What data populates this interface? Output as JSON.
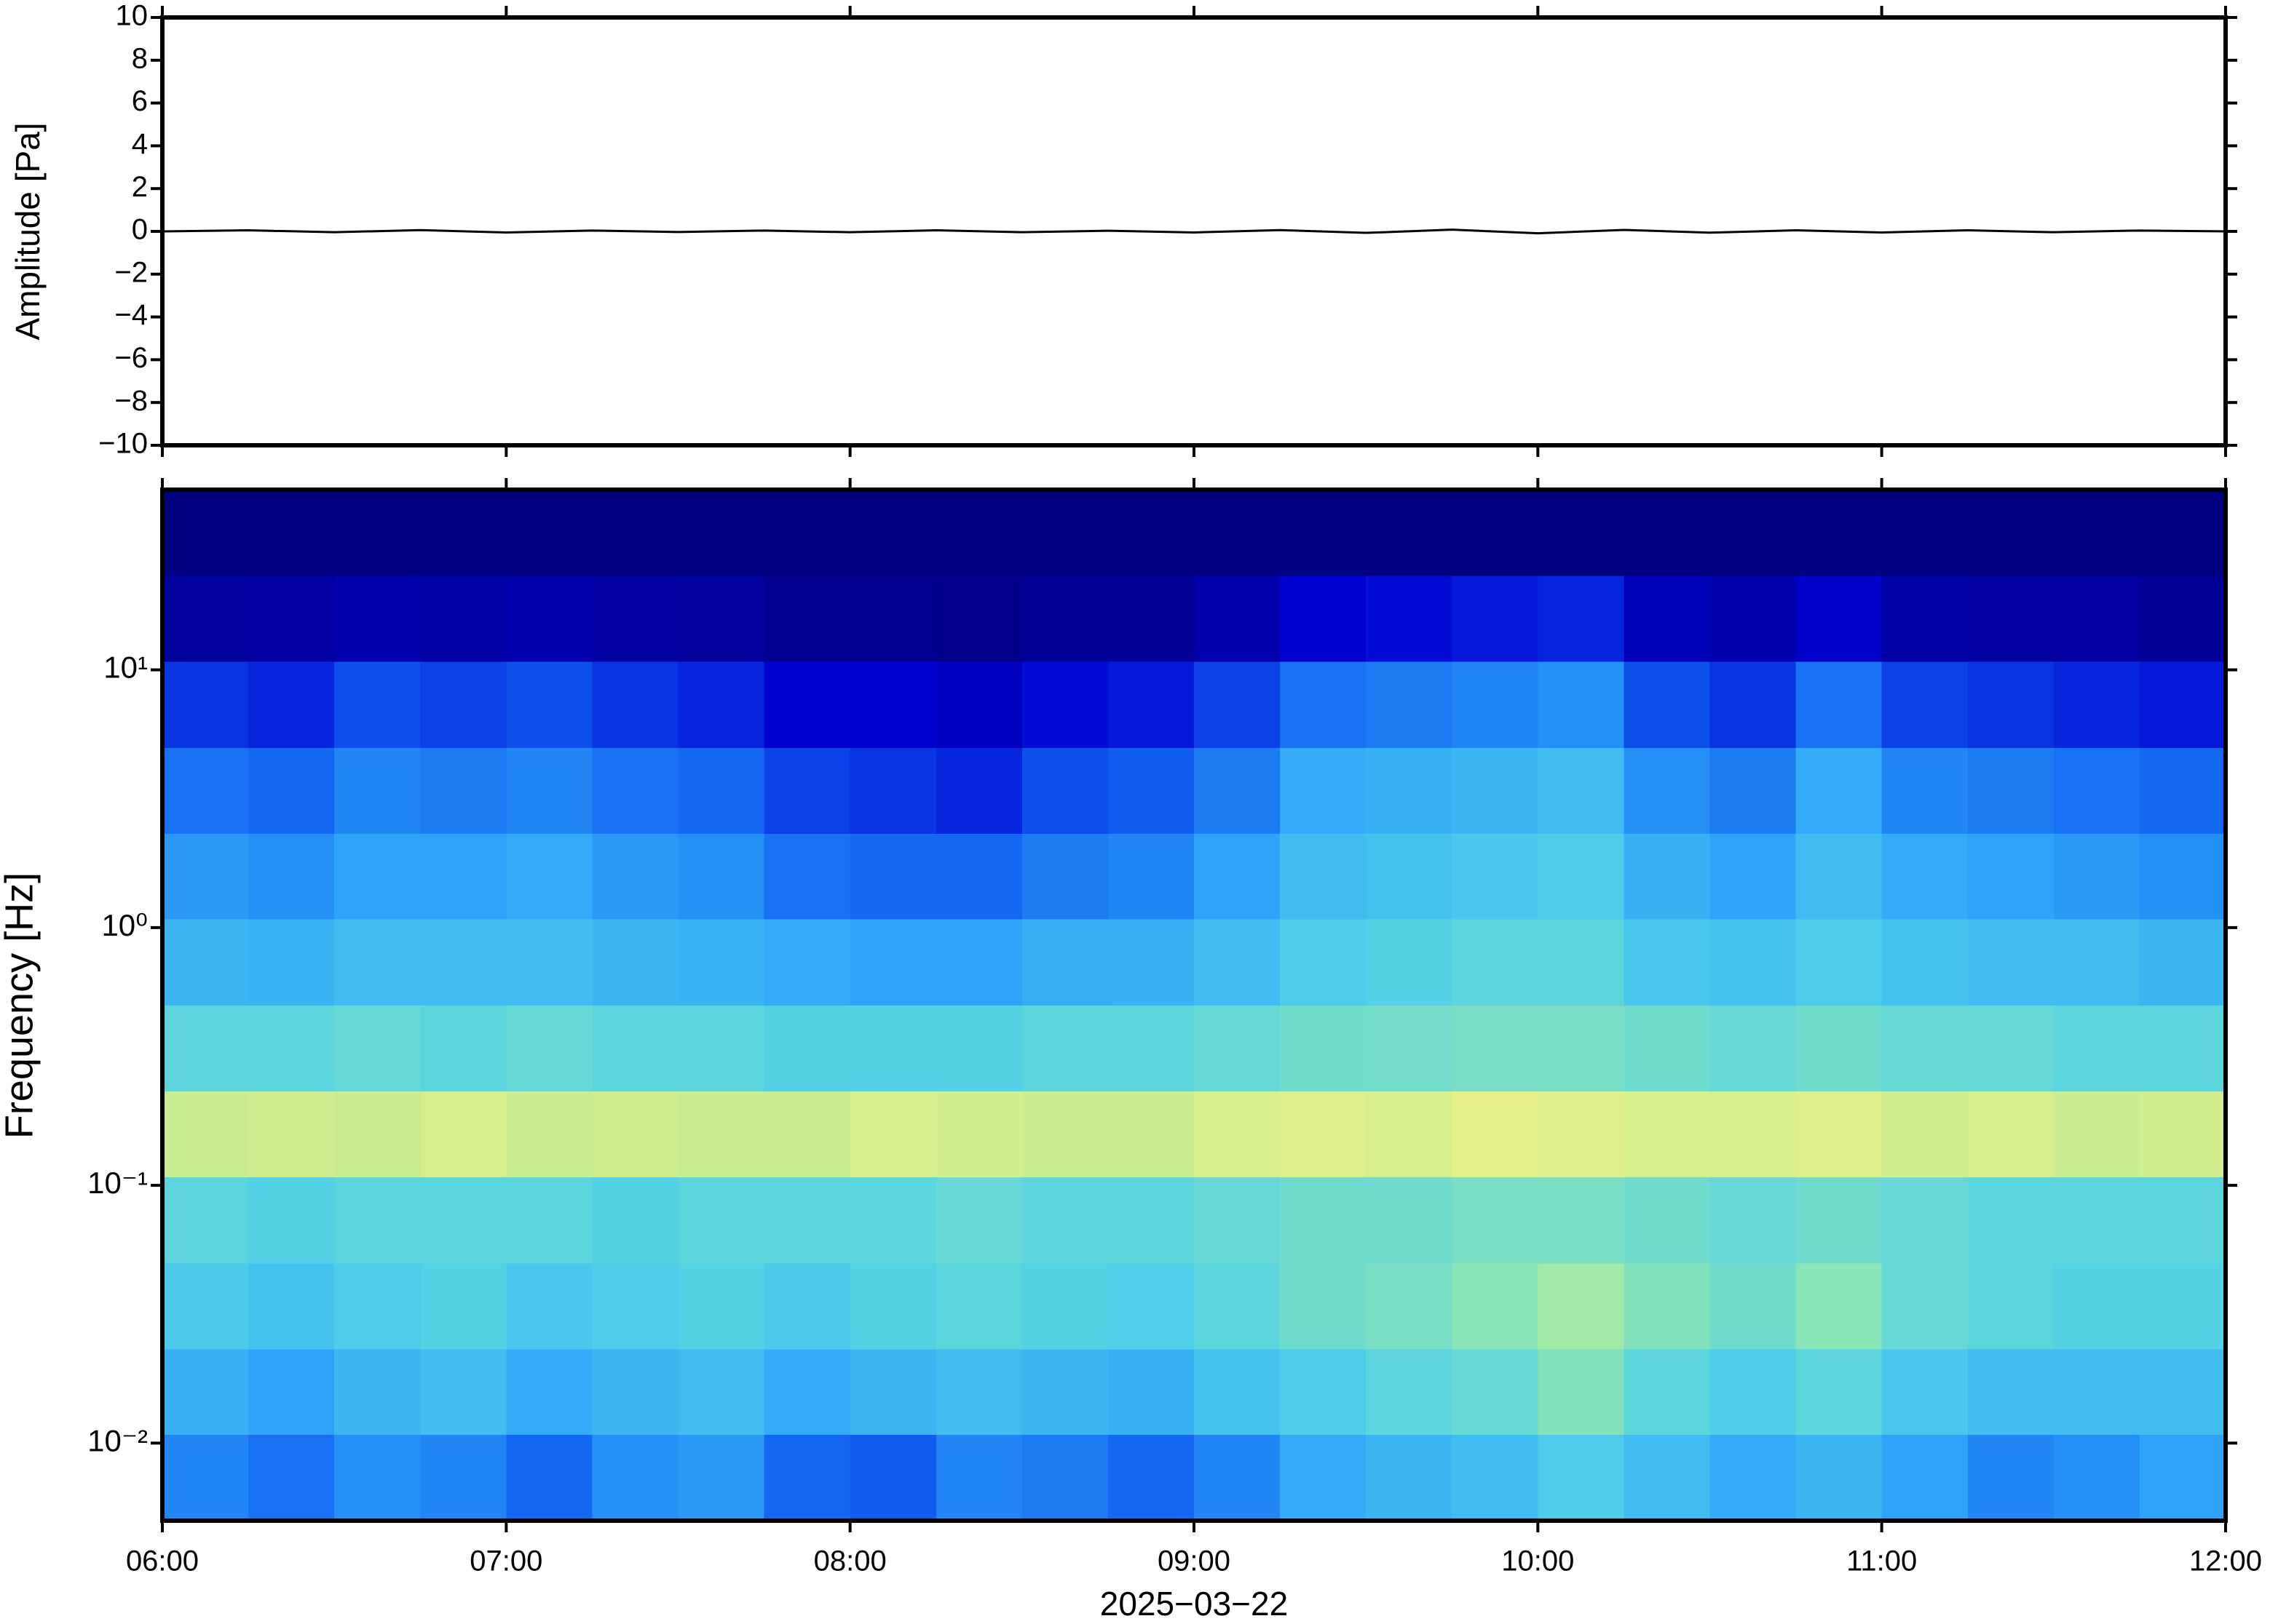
{
  "chart_data": [
    {
      "type": "line",
      "ylabel": "Amplitude [Pa]",
      "color": "#000000",
      "x": [
        6,
        6.25,
        6.5,
        6.75,
        7,
        7.25,
        7.5,
        7.75,
        8,
        8.25,
        8.5,
        8.75,
        9,
        9.25,
        9.5,
        9.75,
        10,
        10.25,
        10.5,
        10.75,
        11,
        11.25,
        11.5,
        11.75,
        12
      ],
      "values": [
        0,
        0.05,
        -0.04,
        0.06,
        -0.05,
        0.04,
        -0.03,
        0.04,
        -0.04,
        0.05,
        -0.04,
        0.03,
        -0.05,
        0.06,
        -0.07,
        0.08,
        -0.09,
        0.07,
        -0.06,
        0.05,
        -0.05,
        0.05,
        -0.04,
        0.04,
        0
      ],
      "xlim": [
        6,
        12
      ],
      "ylim": [
        -10,
        10
      ],
      "yticks": [
        {
          "value": -10,
          "label": "−10"
        },
        {
          "value": -8,
          "label": "−8"
        },
        {
          "value": -6,
          "label": "−6"
        },
        {
          "value": -4,
          "label": "−4"
        },
        {
          "value": -2,
          "label": "−2"
        },
        0,
        2,
        4,
        6,
        8,
        10
      ]
    },
    {
      "type": "heatmap",
      "ylabel": "Frequency [Hz]",
      "xlabel": "2025−03−22",
      "log_y": true,
      "xbins": [
        6,
        6.25,
        6.5,
        6.75,
        7,
        7.25,
        7.5,
        7.75,
        8,
        8.25,
        8.5,
        8.75,
        9,
        9.25,
        9.5,
        9.75,
        10,
        10.25,
        10.5,
        10.75,
        11,
        11.25,
        11.5,
        11.75,
        12
      ],
      "ybins": [
        0.005,
        0.0108,
        0.0232,
        0.05,
        0.108,
        0.232,
        0.5,
        1.08,
        2.32,
        5,
        10.8,
        23.2,
        50
      ],
      "values": [
        [
          0.36,
          0.32,
          0.38,
          0.36,
          0.3,
          0.38,
          0.4,
          0.3,
          0.28,
          0.36,
          0.34,
          0.3,
          0.36,
          0.44,
          0.48,
          0.5,
          0.56,
          0.5,
          0.44,
          0.48,
          0.42,
          0.36,
          0.38,
          0.42
        ],
        [
          0.46,
          0.42,
          0.48,
          0.5,
          0.44,
          0.48,
          0.5,
          0.44,
          0.48,
          0.5,
          0.48,
          0.46,
          0.52,
          0.56,
          0.6,
          0.62,
          0.68,
          0.6,
          0.56,
          0.6,
          0.54,
          0.5,
          0.5,
          0.5
        ],
        [
          0.55,
          0.52,
          0.56,
          0.58,
          0.54,
          0.56,
          0.58,
          0.55,
          0.58,
          0.6,
          0.58,
          0.57,
          0.6,
          0.64,
          0.66,
          0.7,
          0.74,
          0.68,
          0.64,
          0.7,
          0.62,
          0.6,
          0.58,
          0.58
        ],
        [
          0.6,
          0.58,
          0.6,
          0.6,
          0.6,
          0.58,
          0.6,
          0.6,
          0.6,
          0.62,
          0.6,
          0.6,
          0.62,
          0.64,
          0.64,
          0.66,
          0.66,
          0.64,
          0.62,
          0.64,
          0.62,
          0.6,
          0.6,
          0.6
        ],
        [
          0.8,
          0.81,
          0.8,
          0.82,
          0.8,
          0.81,
          0.8,
          0.8,
          0.82,
          0.81,
          0.8,
          0.8,
          0.82,
          0.83,
          0.82,
          0.84,
          0.83,
          0.82,
          0.82,
          0.83,
          0.81,
          0.82,
          0.8,
          0.81
        ],
        [
          0.6,
          0.6,
          0.62,
          0.6,
          0.62,
          0.6,
          0.6,
          0.58,
          0.58,
          0.58,
          0.6,
          0.6,
          0.62,
          0.64,
          0.65,
          0.66,
          0.66,
          0.64,
          0.62,
          0.64,
          0.62,
          0.62,
          0.6,
          0.6
        ],
        [
          0.48,
          0.47,
          0.5,
          0.5,
          0.5,
          0.48,
          0.47,
          0.44,
          0.42,
          0.42,
          0.45,
          0.46,
          0.5,
          0.56,
          0.58,
          0.6,
          0.6,
          0.54,
          0.52,
          0.56,
          0.52,
          0.5,
          0.5,
          0.48
        ],
        [
          0.4,
          0.38,
          0.42,
          0.42,
          0.44,
          0.4,
          0.38,
          0.32,
          0.3,
          0.3,
          0.34,
          0.36,
          0.42,
          0.5,
          0.52,
          0.54,
          0.56,
          0.46,
          0.42,
          0.5,
          0.44,
          0.42,
          0.4,
          0.38
        ],
        [
          0.32,
          0.3,
          0.36,
          0.34,
          0.36,
          0.32,
          0.3,
          0.24,
          0.22,
          0.2,
          0.26,
          0.28,
          0.34,
          0.44,
          0.46,
          0.48,
          0.5,
          0.38,
          0.34,
          0.44,
          0.36,
          0.34,
          0.32,
          0.3
        ],
        [
          0.22,
          0.2,
          0.26,
          0.24,
          0.26,
          0.22,
          0.2,
          0.14,
          0.14,
          0.12,
          0.16,
          0.18,
          0.24,
          0.32,
          0.34,
          0.36,
          0.38,
          0.26,
          0.22,
          0.32,
          0.24,
          0.22,
          0.2,
          0.18
        ],
        [
          0.05,
          0.06,
          0.08,
          0.07,
          0.08,
          0.06,
          0.05,
          0.03,
          0.03,
          0.02,
          0.04,
          0.04,
          0.08,
          0.14,
          0.16,
          0.18,
          0.2,
          0.1,
          0.08,
          0.13,
          0.07,
          0.06,
          0.06,
          0.04
        ],
        [
          0,
          0,
          0,
          0,
          0,
          0,
          0,
          0,
          0,
          0,
          0,
          0,
          0,
          0,
          0,
          0,
          0,
          0,
          0,
          0,
          0,
          0,
          0,
          0
        ]
      ],
      "zlim": [
        0,
        1
      ],
      "colormap": [
        "#000080",
        "#0000d0",
        "#1060f0",
        "#30a8f8",
        "#50d0e8",
        "#90e8b0",
        "#f0f080",
        "#f8b050"
      ],
      "xlim": [
        6,
        12
      ],
      "ylim": [
        0.005,
        50
      ],
      "xticks": [
        {
          "value": 6,
          "label": "06:00"
        },
        {
          "value": 7,
          "label": "07:00"
        },
        {
          "value": 8,
          "label": "08:00"
        },
        {
          "value": 9,
          "label": "09:00"
        },
        {
          "value": 10,
          "label": "10:00"
        },
        {
          "value": 11,
          "label": "11:00"
        },
        {
          "value": 12,
          "label": "12:00"
        }
      ],
      "yticks": [
        {
          "value": 0.01,
          "label": "10⁻²"
        },
        {
          "value": 0.1,
          "label": "10⁻¹"
        },
        {
          "value": 1,
          "label": "10⁰"
        },
        {
          "value": 10,
          "label": "10¹"
        }
      ]
    }
  ]
}
